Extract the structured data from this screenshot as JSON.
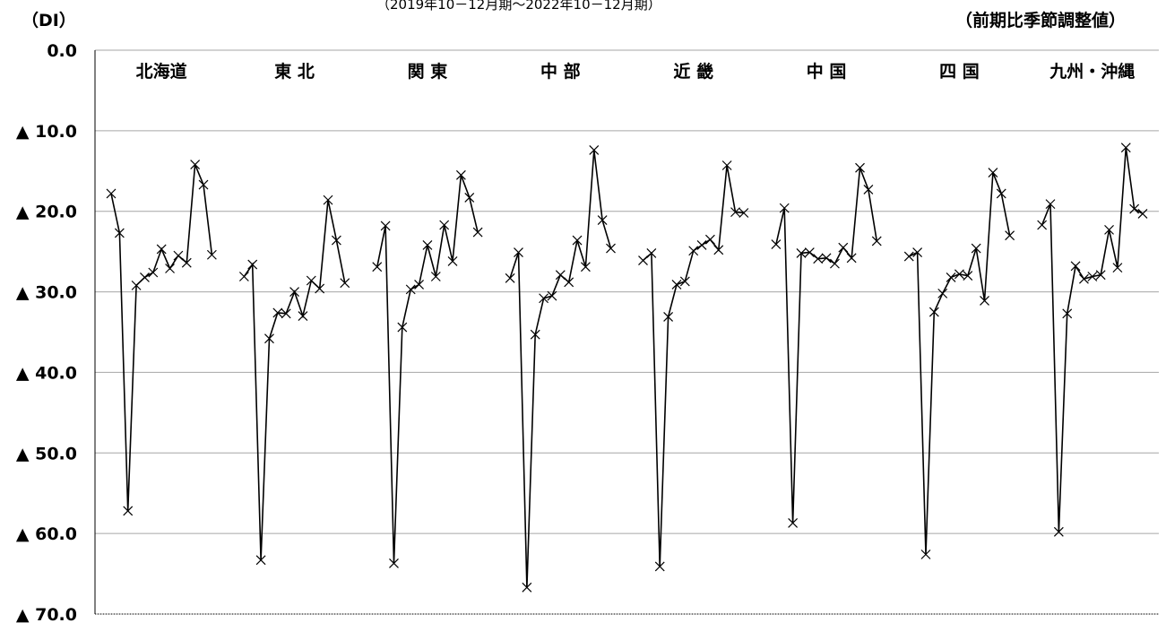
{
  "header": {
    "unit_label": "（DI）",
    "period_label": "（2019年10－12月期～2022年10－12月期）",
    "adjust_label": "（前期比季節調整値）"
  },
  "chart_data": {
    "type": "line",
    "title": "",
    "ylabel": "（DI）",
    "ylim": [
      0,
      70
    ],
    "y_inverted": true,
    "y_ticks": [
      "0.0",
      "▲ 10.0",
      "▲ 20.0",
      "▲ 30.0",
      "▲ 40.0",
      "▲ 50.0",
      "▲ 60.0",
      "▲ 70.0"
    ],
    "grid": true,
    "marker": "x",
    "line_color": "#000000",
    "grid_color": "#a6a6a6",
    "series": [
      {
        "name": "北海道",
        "values": [
          -17.8,
          -22.7,
          -57.2,
          -29.2,
          -28.2,
          -27.6,
          -24.7,
          -27.1,
          -25.5,
          -26.4,
          -14.2,
          -16.7,
          -25.4
        ]
      },
      {
        "name": "東 北",
        "values": [
          -28.1,
          -26.6,
          -63.3,
          -35.8,
          -32.6,
          -32.7,
          -30.0,
          -33.0,
          -28.6,
          -29.6,
          -18.6,
          -23.6,
          -28.9
        ]
      },
      {
        "name": "関 東",
        "values": [
          -26.9,
          -21.8,
          -63.7,
          -34.4,
          -29.7,
          -29.1,
          -24.2,
          -28.1,
          -21.7,
          -26.2,
          -15.5,
          -18.3,
          -22.6
        ]
      },
      {
        "name": "中 部",
        "values": [
          -28.3,
          -25.1,
          -66.7,
          -35.3,
          -30.8,
          -30.5,
          -27.9,
          -28.8,
          -23.6,
          -26.9,
          -12.4,
          -21.1,
          -24.6
        ]
      },
      {
        "name": "近 畿",
        "values": [
          -26.1,
          -25.2,
          -64.1,
          -33.1,
          -29.1,
          -28.7,
          -24.9,
          -24.2,
          -23.5,
          -24.8,
          -14.3,
          -20.1,
          -20.2
        ]
      },
      {
        "name": "中 国",
        "values": [
          -24.1,
          -19.6,
          -58.7,
          -25.2,
          -25.1,
          -25.9,
          -25.8,
          -26.5,
          -24.5,
          -25.8,
          -14.6,
          -17.3,
          -23.7
        ]
      },
      {
        "name": "四 国",
        "values": [
          -25.6,
          -25.1,
          -62.6,
          -32.5,
          -30.2,
          -28.2,
          -27.8,
          -28.0,
          -24.6,
          -31.1,
          -15.2,
          -17.8,
          -23.0
        ]
      },
      {
        "name": "九州・沖縄",
        "values": [
          -21.7,
          -19.1,
          -59.8,
          -32.7,
          -26.8,
          -28.4,
          -28.1,
          -27.9,
          -22.3,
          -27.0,
          -12.1,
          -19.7,
          -20.3
        ]
      }
    ]
  }
}
